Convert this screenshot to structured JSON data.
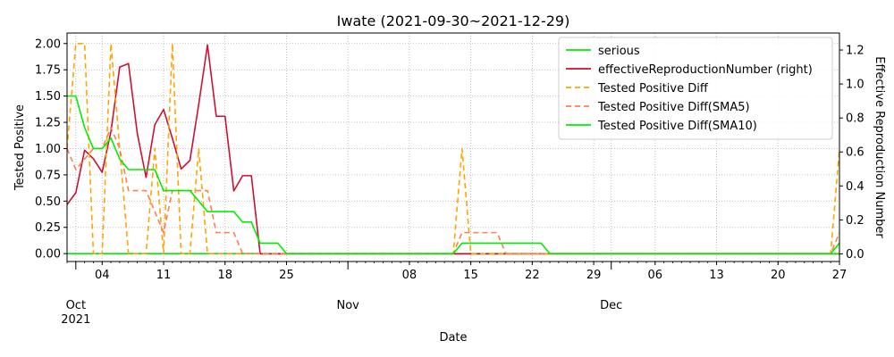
{
  "chart_data": {
    "type": "line",
    "title": "Iwate (2021-09-30~2021-12-29)",
    "xlabel": "Date",
    "ylabel_left": "Tested Positive",
    "ylabel_right": "Effective Reproduction Number",
    "x_start": "2021-09-30",
    "x_end": "2021-12-27",
    "ylim_left": [
      -0.075,
      2.1
    ],
    "ylim_right": [
      -0.045,
      1.3
    ],
    "yticks_left": [
      0.0,
      0.25,
      0.5,
      0.75,
      1.0,
      1.25,
      1.5,
      1.75,
      2.0
    ],
    "yticks_right": [
      0.0,
      0.2,
      0.4,
      0.6,
      0.8,
      1.0,
      1.2
    ],
    "ytick_labels_left": [
      "0.00",
      "0.25",
      "0.50",
      "0.75",
      "1.00",
      "1.25",
      "1.50",
      "1.75",
      "2.00"
    ],
    "ytick_labels_right": [
      "0.0",
      "0.2",
      "0.4",
      "0.6",
      "0.8",
      "1.0",
      "1.2"
    ],
    "xticks_major": [
      {
        "date": "2021-10-01",
        "label": "Oct",
        "sublabel": "2021"
      },
      {
        "date": "2021-11-01",
        "label": "Nov",
        "sublabel": ""
      },
      {
        "date": "2021-12-01",
        "label": "Dec",
        "sublabel": ""
      }
    ],
    "xticks_minor": [
      {
        "date": "2021-10-04",
        "label": "04"
      },
      {
        "date": "2021-10-11",
        "label": "11"
      },
      {
        "date": "2021-10-18",
        "label": "18"
      },
      {
        "date": "2021-10-25",
        "label": "25"
      },
      {
        "date": "2021-11-08",
        "label": "08"
      },
      {
        "date": "2021-11-15",
        "label": "15"
      },
      {
        "date": "2021-11-22",
        "label": "22"
      },
      {
        "date": "2021-11-29",
        "label": "29"
      },
      {
        "date": "2021-12-06",
        "label": "06"
      },
      {
        "date": "2021-12-13",
        "label": "13"
      },
      {
        "date": "2021-12-20",
        "label": "20"
      },
      {
        "date": "2021-12-27",
        "label": "27"
      }
    ],
    "grid": true,
    "legend_position": "top-right",
    "series": [
      {
        "name": "serious",
        "axis": "left",
        "color": "#00ee00",
        "dash": "solid",
        "points": [
          [
            "2021-09-30",
            0
          ],
          [
            "2021-12-26",
            0
          ],
          [
            "2021-12-27",
            0.1
          ]
        ]
      },
      {
        "name": "effectiveReproductionNumber (right)",
        "axis": "right",
        "color": "#cc1133",
        "dash": "solid",
        "points": [
          [
            "2021-09-30",
            0.29
          ],
          [
            "2021-10-01",
            0.36
          ],
          [
            "2021-10-02",
            0.61
          ],
          [
            "2021-10-03",
            0.56
          ],
          [
            "2021-10-04",
            0.48
          ],
          [
            "2021-10-05",
            0.72
          ],
          [
            "2021-10-06",
            1.1
          ],
          [
            "2021-10-07",
            1.12
          ],
          [
            "2021-10-08",
            0.71
          ],
          [
            "2021-10-09",
            0.45
          ],
          [
            "2021-10-10",
            0.76
          ],
          [
            "2021-10-11",
            0.85
          ],
          [
            "2021-10-12",
            0.68
          ],
          [
            "2021-10-13",
            0.5
          ],
          [
            "2021-10-14",
            0.55
          ],
          [
            "2021-10-15",
            0.88
          ],
          [
            "2021-10-16",
            1.23
          ],
          [
            "2021-10-17",
            0.81
          ],
          [
            "2021-10-18",
            0.81
          ],
          [
            "2021-10-19",
            0.37
          ],
          [
            "2021-10-20",
            0.46
          ],
          [
            "2021-10-21",
            0.46
          ],
          [
            "2021-10-22",
            0.0
          ],
          [
            "2021-12-27",
            0.0
          ]
        ]
      },
      {
        "name": "Tested Positive Diff",
        "axis": "left",
        "color": "#ffa500",
        "dash": "dashed",
        "points": [
          [
            "2021-09-30",
            1.0
          ],
          [
            "2021-10-01",
            2.0
          ],
          [
            "2021-10-02",
            2.0
          ],
          [
            "2021-10-03",
            0.0
          ],
          [
            "2021-10-04",
            0.0
          ],
          [
            "2021-10-05",
            2.0
          ],
          [
            "2021-10-06",
            1.0
          ],
          [
            "2021-10-07",
            0.0
          ],
          [
            "2021-10-08",
            0.0
          ],
          [
            "2021-10-09",
            0.0
          ],
          [
            "2021-10-10",
            1.0
          ],
          [
            "2021-10-11",
            0.0
          ],
          [
            "2021-10-12",
            2.0
          ],
          [
            "2021-10-13",
            0.0
          ],
          [
            "2021-10-14",
            0.0
          ],
          [
            "2021-10-15",
            1.0
          ],
          [
            "2021-10-16",
            0.0
          ],
          [
            "2021-11-13",
            0.0
          ],
          [
            "2021-11-14",
            1.0
          ],
          [
            "2021-11-15",
            0.0
          ],
          [
            "2021-12-26",
            0.0
          ],
          [
            "2021-12-27",
            1.0
          ]
        ]
      },
      {
        "name": "Tested Positive Diff(SMA5)",
        "axis": "left",
        "color": "#ff7f50",
        "dash": "dashed",
        "points": [
          [
            "2021-09-30",
            1.0
          ],
          [
            "2021-10-01",
            0.8
          ],
          [
            "2021-10-02",
            0.9
          ],
          [
            "2021-10-03",
            1.0
          ],
          [
            "2021-10-04",
            1.0
          ],
          [
            "2021-10-05",
            1.2
          ],
          [
            "2021-10-06",
            1.0
          ],
          [
            "2021-10-07",
            0.6
          ],
          [
            "2021-10-08",
            0.6
          ],
          [
            "2021-10-09",
            0.6
          ],
          [
            "2021-10-10",
            0.4
          ],
          [
            "2021-10-11",
            0.2
          ],
          [
            "2021-10-12",
            0.6
          ],
          [
            "2021-10-13",
            0.6
          ],
          [
            "2021-10-14",
            0.6
          ],
          [
            "2021-10-15",
            0.6
          ],
          [
            "2021-10-16",
            0.6
          ],
          [
            "2021-10-17",
            0.2
          ],
          [
            "2021-10-18",
            0.2
          ],
          [
            "2021-10-19",
            0.2
          ],
          [
            "2021-10-20",
            0.0
          ],
          [
            "2021-11-13",
            0.0
          ],
          [
            "2021-11-14",
            0.2
          ],
          [
            "2021-11-18",
            0.2
          ],
          [
            "2021-11-19",
            0.0
          ],
          [
            "2021-12-26",
            0.0
          ],
          [
            "2021-12-27",
            0.2
          ]
        ]
      },
      {
        "name": "Tested Positive Diff(SMA10)",
        "axis": "left",
        "color": "#00ee00",
        "dash": "solid",
        "points": [
          [
            "2021-09-30",
            1.5
          ],
          [
            "2021-10-01",
            1.5
          ],
          [
            "2021-10-02",
            1.2
          ],
          [
            "2021-10-03",
            1.0
          ],
          [
            "2021-10-04",
            1.0
          ],
          [
            "2021-10-05",
            1.1
          ],
          [
            "2021-10-06",
            0.9
          ],
          [
            "2021-10-07",
            0.8
          ],
          [
            "2021-10-08",
            0.8
          ],
          [
            "2021-10-09",
            0.8
          ],
          [
            "2021-10-10",
            0.8
          ],
          [
            "2021-10-11",
            0.6
          ],
          [
            "2021-10-12",
            0.6
          ],
          [
            "2021-10-13",
            0.6
          ],
          [
            "2021-10-14",
            0.6
          ],
          [
            "2021-10-15",
            0.5
          ],
          [
            "2021-10-16",
            0.4
          ],
          [
            "2021-10-17",
            0.4
          ],
          [
            "2021-10-18",
            0.4
          ],
          [
            "2021-10-19",
            0.4
          ],
          [
            "2021-10-20",
            0.3
          ],
          [
            "2021-10-21",
            0.3
          ],
          [
            "2021-10-22",
            0.1
          ],
          [
            "2021-10-23",
            0.1
          ],
          [
            "2021-10-24",
            0.1
          ],
          [
            "2021-10-25",
            0.0
          ],
          [
            "2021-11-13",
            0.0
          ],
          [
            "2021-11-14",
            0.1
          ],
          [
            "2021-11-23",
            0.1
          ],
          [
            "2021-11-24",
            0.0
          ],
          [
            "2021-12-27",
            0.0
          ]
        ]
      }
    ]
  }
}
